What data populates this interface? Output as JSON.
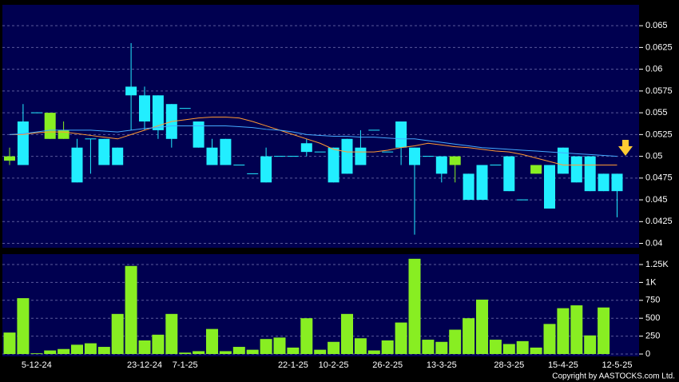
{
  "chart_data": [
    {
      "type": "candlestick",
      "up_color": "#22eeff",
      "down_color": "#88ee22",
      "open": [
        0.05,
        0.049,
        0.055,
        0.055,
        0.053,
        0.047,
        0.052,
        0.049,
        0.049,
        0.057,
        0.054,
        0.053,
        0.052,
        0.0555,
        0.051,
        0.049,
        0.049,
        0.049,
        0.048,
        0.047,
        0.05,
        0.05,
        0.0505,
        0.0505,
        0.047,
        0.048,
        0.049,
        0.053,
        0.0505,
        0.051,
        0.049,
        0.05,
        0.048,
        0.05,
        0.045,
        0.045,
        0.049,
        0.046,
        0.045,
        0.049,
        0.044,
        0.048,
        0.047,
        0.046,
        0.046,
        0.046
      ],
      "high": [
        0.051,
        0.056,
        0.055,
        0.055,
        0.054,
        0.052,
        0.052,
        0.052,
        0.051,
        0.063,
        0.058,
        0.057,
        0.056,
        0.0555,
        0.054,
        0.052,
        0.052,
        0.049,
        0.048,
        0.051,
        0.05,
        0.05,
        0.052,
        0.0505,
        0.051,
        0.052,
        0.053,
        0.053,
        0.0505,
        0.054,
        0.051,
        0.05,
        0.05,
        0.05,
        0.048,
        0.049,
        0.049,
        0.05,
        0.045,
        0.049,
        0.049,
        0.051,
        0.05,
        0.05,
        0.048,
        0.048
      ],
      "low": [
        0.049,
        0.049,
        0.055,
        0.052,
        0.052,
        0.047,
        0.048,
        0.049,
        0.049,
        0.053,
        0.053,
        0.052,
        0.051,
        0.0555,
        0.051,
        0.049,
        0.049,
        0.049,
        0.048,
        0.047,
        0.05,
        0.05,
        0.05,
        0.0505,
        0.047,
        0.048,
        0.049,
        0.053,
        0.0505,
        0.049,
        0.041,
        0.05,
        0.047,
        0.047,
        0.045,
        0.045,
        0.049,
        0.046,
        0.045,
        0.048,
        0.044,
        0.048,
        0.047,
        0.046,
        0.046,
        0.043
      ],
      "close": [
        0.0495,
        0.054,
        0.055,
        0.052,
        0.052,
        0.051,
        0.052,
        0.052,
        0.051,
        0.058,
        0.057,
        0.057,
        0.056,
        0.0555,
        0.054,
        0.051,
        0.052,
        0.049,
        0.048,
        0.05,
        0.05,
        0.05,
        0.0515,
        0.0505,
        0.051,
        0.052,
        0.051,
        0.053,
        0.0505,
        0.054,
        0.051,
        0.05,
        0.05,
        0.049,
        0.048,
        0.049,
        0.049,
        0.05,
        0.045,
        0.048,
        0.049,
        0.051,
        0.05,
        0.05,
        0.048,
        0.048
      ],
      "series": [
        {
          "color": "#ff9933",
          "values": [
            0.0525,
            0.0525,
            0.0527,
            0.0528,
            0.0528,
            0.0526,
            0.0524,
            0.0522,
            0.052,
            0.0525,
            0.053,
            0.0535,
            0.054,
            0.0542,
            0.0544,
            0.0545,
            0.0545,
            0.0544,
            0.054,
            0.0535,
            0.053,
            0.0525,
            0.052,
            0.0515,
            0.0508,
            0.0505,
            0.0505,
            0.0505,
            0.0507,
            0.051,
            0.0512,
            0.0515,
            0.0513,
            0.0511,
            0.051,
            0.0508,
            0.0506,
            0.0505,
            0.0502,
            0.0498,
            0.0494,
            0.049,
            0.049,
            0.049,
            0.049,
            0.049
          ]
        },
        {
          "color": "#44aaff",
          "values": [
            0.0525,
            0.0526,
            0.0528,
            0.053,
            0.053,
            0.053,
            0.053,
            0.0529,
            0.0528,
            0.053,
            0.0532,
            0.0533,
            0.0535,
            0.0535,
            0.0535,
            0.0535,
            0.0535,
            0.0534,
            0.0533,
            0.0531,
            0.053,
            0.0528,
            0.0525,
            0.0524,
            0.0523,
            0.0523,
            0.0522,
            0.0522,
            0.0521,
            0.052,
            0.052,
            0.0518,
            0.0516,
            0.0514,
            0.0512,
            0.051,
            0.0509,
            0.0508,
            0.0507,
            0.0506,
            0.0505,
            0.0504,
            0.0503,
            0.0502,
            0.0501,
            0.05
          ]
        }
      ],
      "ylim": [
        0.0395,
        0.0674
      ],
      "yticks": [
        0.04,
        0.0425,
        0.045,
        0.0475,
        0.05,
        0.0525,
        0.055,
        0.0575,
        0.06,
        0.0625,
        0.065
      ],
      "grid": true
    },
    {
      "type": "bar",
      "color": "#88ee22",
      "categories": [
        null,
        null,
        "5-12-24",
        null,
        null,
        null,
        null,
        null,
        null,
        null,
        "23-12-24",
        null,
        null,
        "7-1-25",
        null,
        null,
        null,
        null,
        null,
        null,
        null,
        "22-1-25",
        null,
        null,
        "10-2-25",
        null,
        null,
        null,
        "26-2-25",
        null,
        null,
        null,
        "13-3-25",
        null,
        null,
        null,
        null,
        "28-3-25",
        null,
        null,
        null,
        "15-4-25",
        null,
        null,
        null,
        "12-5-25"
      ],
      "values": [
        300,
        780,
        10,
        50,
        70,
        130,
        150,
        100,
        560,
        1230,
        190,
        270,
        560,
        20,
        40,
        350,
        40,
        100,
        60,
        210,
        230,
        90,
        500,
        60,
        170,
        560,
        220,
        50,
        190,
        440,
        1330,
        200,
        170,
        340,
        500,
        760,
        200,
        140,
        180,
        90,
        420,
        640,
        680,
        260,
        650,
        0
      ],
      "ylim": [
        0,
        1395
      ],
      "yticks": [
        0,
        250,
        500,
        750,
        {
          "value": 1000,
          "label": "1K"
        },
        {
          "value": 1250,
          "label": "1.25K"
        }
      ],
      "grid": true
    }
  ],
  "copyright": "Copyright by AASTOCKS.com Ltd."
}
